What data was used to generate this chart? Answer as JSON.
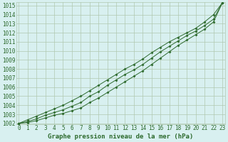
{
  "title": "Graphe pression niveau de la mer (hPa)",
  "x": [
    0,
    1,
    2,
    3,
    4,
    5,
    6,
    7,
    8,
    9,
    10,
    11,
    12,
    13,
    14,
    15,
    16,
    17,
    18,
    19,
    20,
    21,
    22,
    23
  ],
  "y_main": [
    1002.0,
    1002.2,
    1002.5,
    1002.9,
    1003.2,
    1003.5,
    1003.9,
    1004.3,
    1005.0,
    1005.5,
    1006.2,
    1006.8,
    1007.4,
    1007.9,
    1008.5,
    1009.2,
    1009.9,
    1010.5,
    1011.1,
    1011.7,
    1012.2,
    1012.8,
    1013.5,
    1015.3
  ],
  "y_high": [
    1002.0,
    1002.4,
    1002.8,
    1003.2,
    1003.6,
    1004.0,
    1004.5,
    1005.0,
    1005.6,
    1006.2,
    1006.8,
    1007.4,
    1008.0,
    1008.5,
    1009.1,
    1009.8,
    1010.4,
    1011.0,
    1011.5,
    1012.0,
    1012.5,
    1013.2,
    1014.0,
    1015.3
  ],
  "y_low": [
    1002.0,
    1002.1,
    1002.3,
    1002.6,
    1002.9,
    1003.1,
    1003.4,
    1003.7,
    1004.3,
    1004.8,
    1005.4,
    1006.0,
    1006.6,
    1007.2,
    1007.8,
    1008.5,
    1009.2,
    1009.9,
    1010.6,
    1011.2,
    1011.8,
    1012.4,
    1013.2,
    1015.3
  ],
  "line_color": "#2d6a2d",
  "background_color": "#d8f0f0",
  "grid_color": "#b0c8b0",
  "ylim_min": 1002,
  "ylim_max": 1015,
  "xlim_min": 0,
  "xlim_max": 23,
  "yticks": [
    1002,
    1003,
    1004,
    1005,
    1006,
    1007,
    1008,
    1009,
    1010,
    1011,
    1012,
    1013,
    1014,
    1015
  ],
  "xticks": [
    0,
    1,
    2,
    3,
    4,
    5,
    6,
    7,
    8,
    9,
    10,
    11,
    12,
    13,
    14,
    15,
    16,
    17,
    18,
    19,
    20,
    21,
    22,
    23
  ],
  "tick_fontsize": 5.5,
  "title_fontsize": 6.5
}
